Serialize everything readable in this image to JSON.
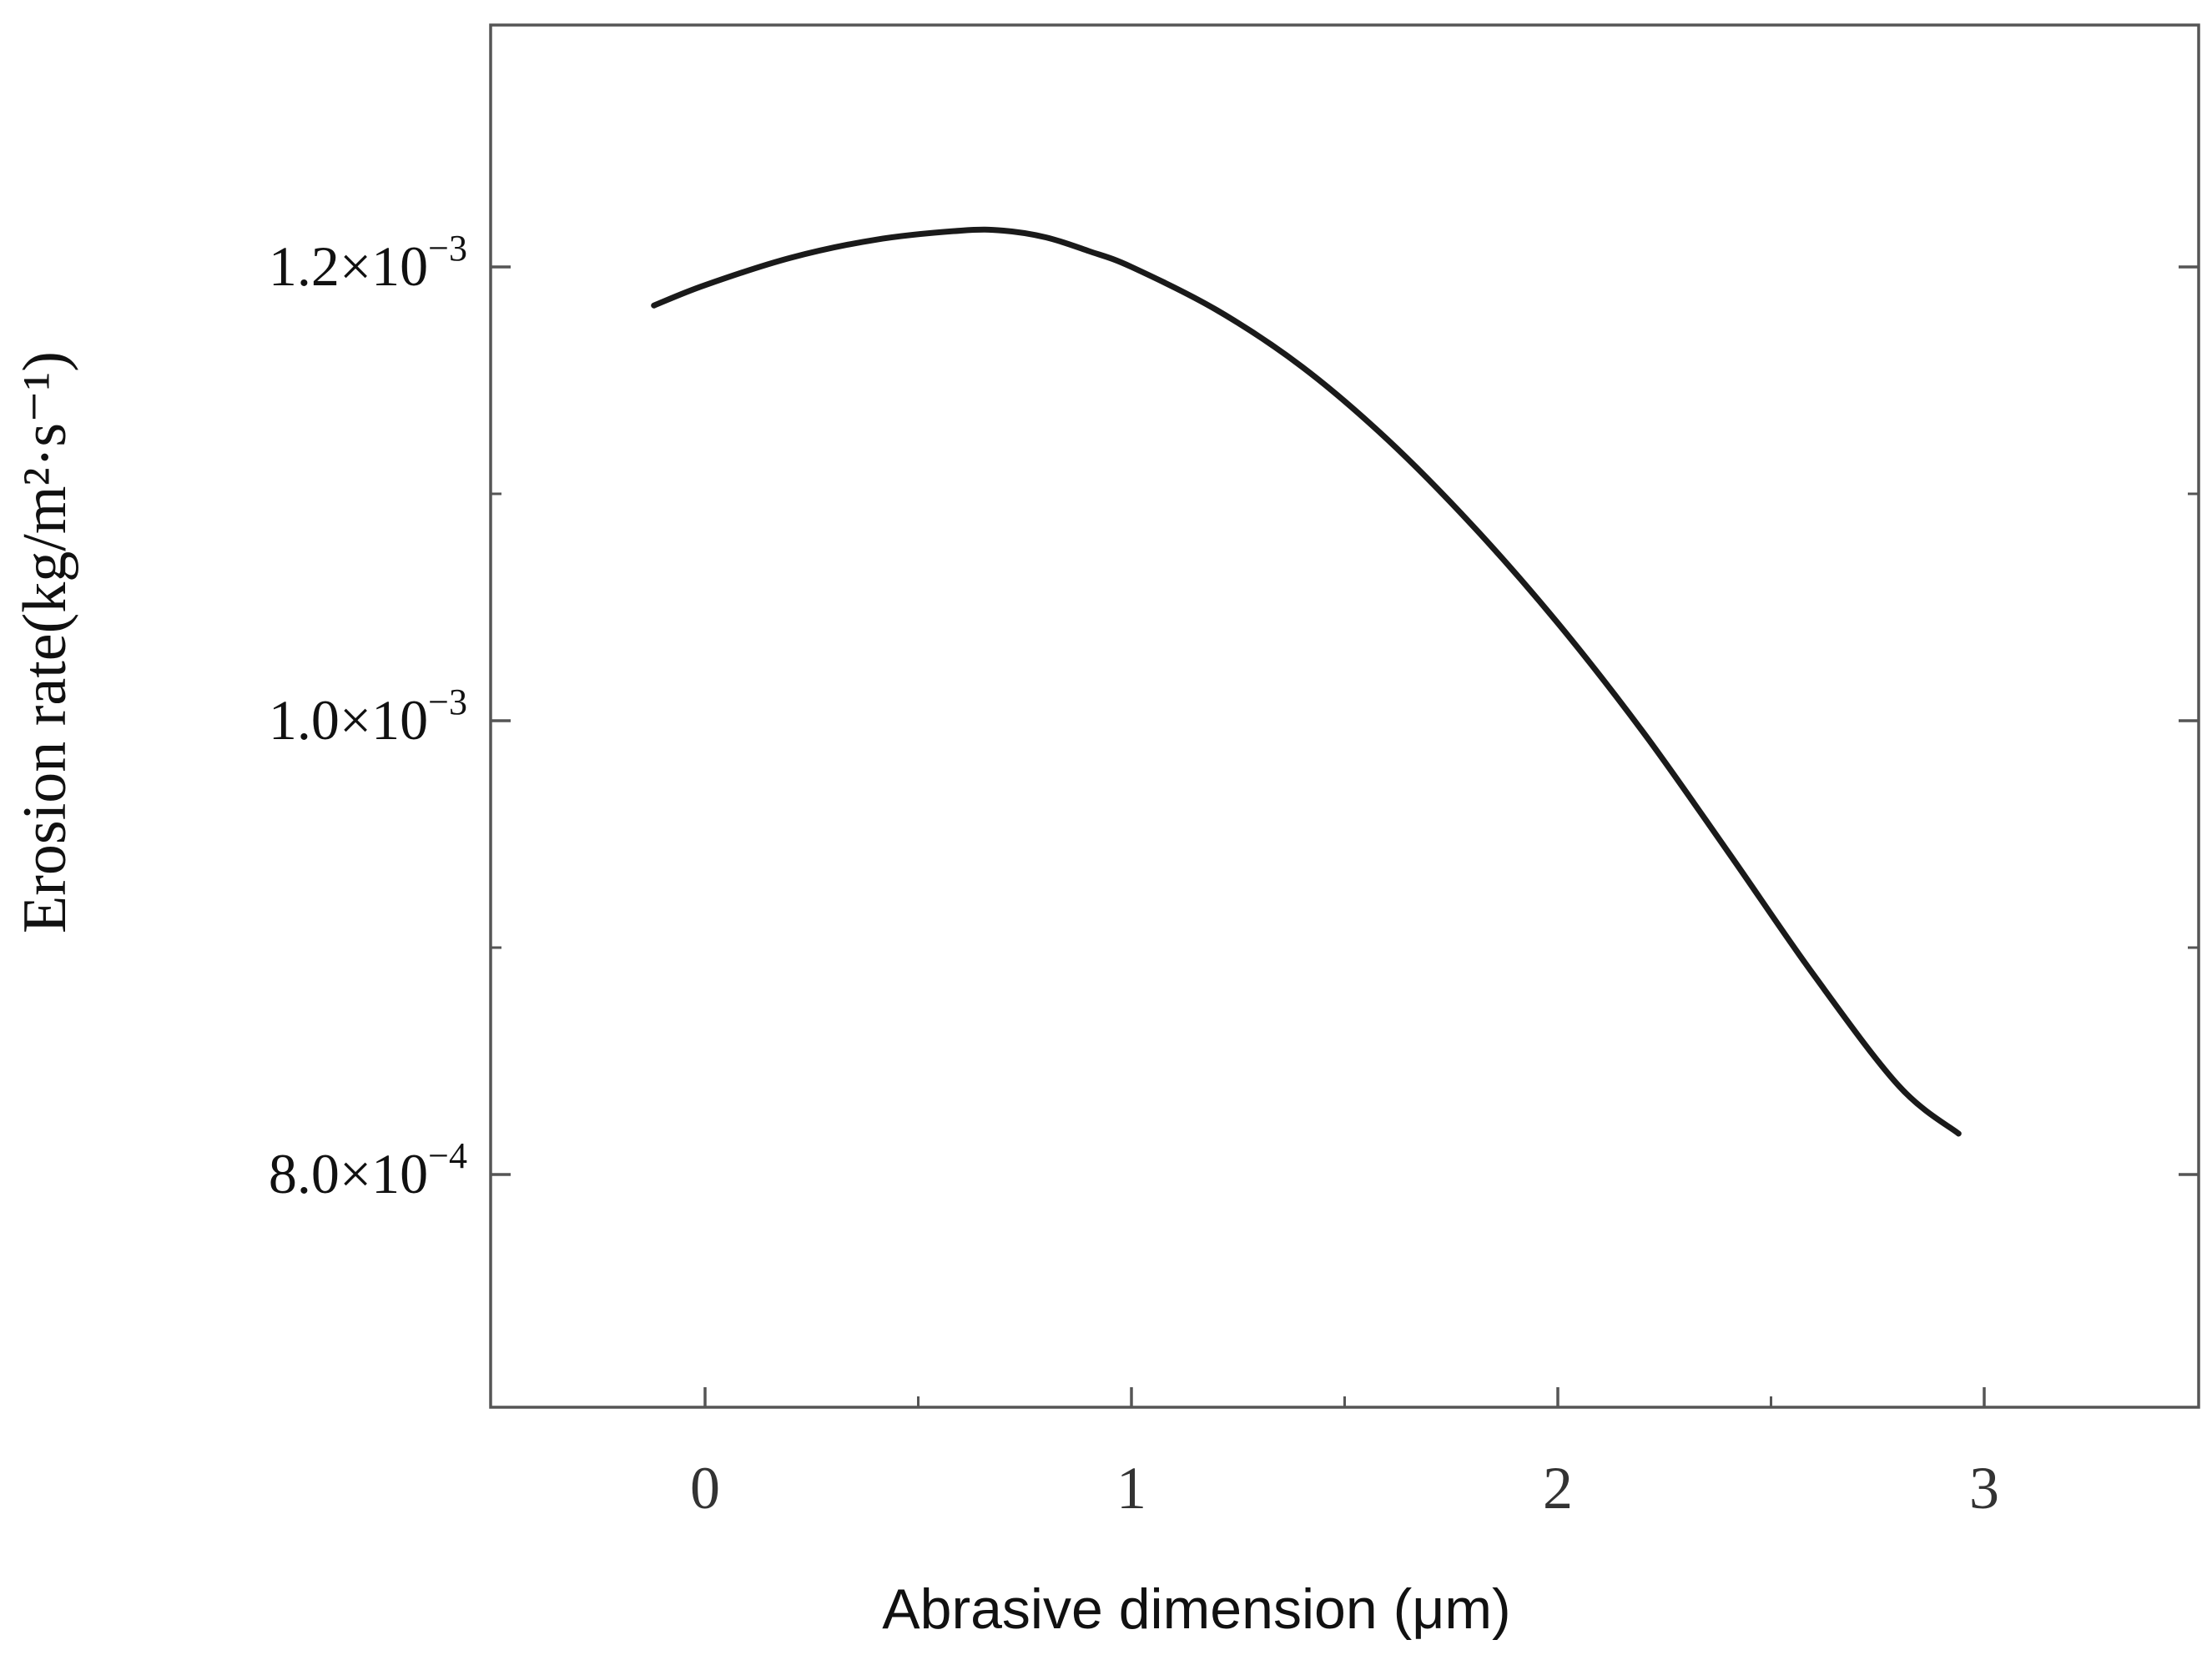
{
  "chart_data": {
    "type": "line",
    "xlabel": "Abrasive dimension (μm)",
    "ylabel": "Erosion rate(kg/m²·s⁻¹)",
    "xlim": [
      -0.5,
      3.5
    ],
    "ylim": [
      0.0007,
      0.00127
    ],
    "x_ticks": [
      0,
      1,
      2,
      3
    ],
    "x_tick_labels": [
      "0",
      "1",
      "2",
      "3"
    ],
    "x_minor_ticks": [
      0.5,
      1.5,
      2.5
    ],
    "y_ticks": [
      0.0008,
      0.001,
      0.0012
    ],
    "y_tick_labels": [
      {
        "mantissa": "8.0×10",
        "exponent": "−4"
      },
      {
        "mantissa": "1.0×10",
        "exponent": "−3"
      },
      {
        "mantissa": "1.2×10",
        "exponent": "−3"
      }
    ],
    "y_minor_ticks": [
      0.0009,
      0.0011
    ],
    "grid": false,
    "series": [
      {
        "color": "#1a1a1a",
        "x": [
          -0.12,
          0.0,
          0.2,
          0.4,
          0.6,
          0.7,
          0.8,
          0.9,
          1.0,
          1.2,
          1.4,
          1.6,
          1.8,
          2.0,
          2.2,
          2.4,
          2.6,
          2.8,
          2.94
        ],
        "y": [
          0.001183,
          0.001192,
          0.001204,
          0.001212,
          0.001216,
          0.001216,
          0.001213,
          0.001207,
          0.0012,
          0.001181,
          0.001156,
          0.001124,
          0.001086,
          0.001043,
          0.000995,
          0.000942,
          0.000888,
          0.000839,
          0.000818
        ]
      }
    ]
  }
}
